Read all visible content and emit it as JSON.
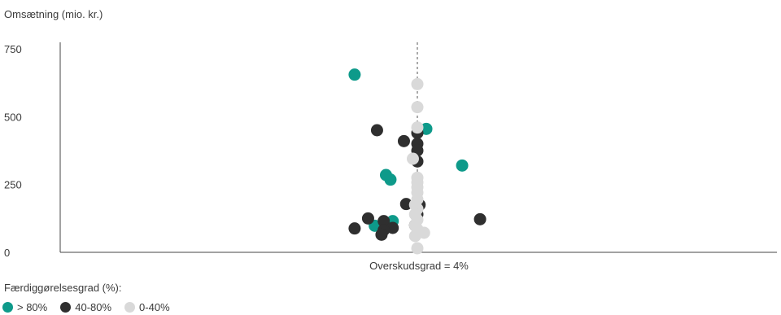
{
  "chart_data": {
    "type": "scatter",
    "ylabel": "Omsætning (mio. kr.)",
    "xlabel": "Overskudsgrad = 4%",
    "ylim": [
      0,
      750
    ],
    "yticks": [
      0,
      250,
      500,
      750
    ],
    "xlim": [
      -0.16,
      0.16
    ],
    "reference_x": 0.04,
    "legend_title": "Færdiggørelsesgrad (%):",
    "legend_placement": "bottom-left",
    "grid": false,
    "series": [
      {
        "name": "> 80%",
        "color": "#0e9a8a",
        "points": [
          {
            "x": 0.012,
            "y": 655
          },
          {
            "x": 0.044,
            "y": 455
          },
          {
            "x": 0.06,
            "y": 320
          },
          {
            "x": 0.026,
            "y": 285
          },
          {
            "x": 0.028,
            "y": 268
          },
          {
            "x": 0.029,
            "y": 115
          },
          {
            "x": 0.021,
            "y": 98
          }
        ]
      },
      {
        "name": "40-80%",
        "color": "#2f2f2f",
        "points": [
          {
            "x": 0.022,
            "y": 450
          },
          {
            "x": 0.034,
            "y": 410
          },
          {
            "x": 0.04,
            "y": 440
          },
          {
            "x": 0.04,
            "y": 400
          },
          {
            "x": 0.04,
            "y": 375
          },
          {
            "x": 0.04,
            "y": 335
          },
          {
            "x": 0.035,
            "y": 178
          },
          {
            "x": 0.041,
            "y": 175
          },
          {
            "x": 0.018,
            "y": 125
          },
          {
            "x": 0.068,
            "y": 122
          },
          {
            "x": 0.025,
            "y": 115
          },
          {
            "x": 0.012,
            "y": 88
          },
          {
            "x": 0.029,
            "y": 90
          },
          {
            "x": 0.025,
            "y": 82
          },
          {
            "x": 0.024,
            "y": 65
          },
          {
            "x": 0.04,
            "y": 140
          },
          {
            "x": 0.039,
            "y": 100
          }
        ]
      },
      {
        "name": "0-40%",
        "color": "#d9d9d9",
        "points": [
          {
            "x": 0.04,
            "y": 620
          },
          {
            "x": 0.04,
            "y": 535
          },
          {
            "x": 0.04,
            "y": 460
          },
          {
            "x": 0.038,
            "y": 345
          },
          {
            "x": 0.04,
            "y": 275
          },
          {
            "x": 0.04,
            "y": 258
          },
          {
            "x": 0.04,
            "y": 240
          },
          {
            "x": 0.04,
            "y": 220
          },
          {
            "x": 0.04,
            "y": 195
          },
          {
            "x": 0.039,
            "y": 175
          },
          {
            "x": 0.04,
            "y": 160
          },
          {
            "x": 0.039,
            "y": 140
          },
          {
            "x": 0.04,
            "y": 120
          },
          {
            "x": 0.039,
            "y": 100
          },
          {
            "x": 0.04,
            "y": 85
          },
          {
            "x": 0.043,
            "y": 72
          },
          {
            "x": 0.039,
            "y": 60
          },
          {
            "x": 0.04,
            "y": 15
          }
        ]
      }
    ]
  },
  "labels": {
    "y_axis_title": "Omsætning (mio. kr.)",
    "x_axis_caption": "Overskudsgrad = 4%",
    "legend_title": "Færdiggørelsesgrad (%):",
    "legend_items": [
      "> 80%",
      "40-80%",
      "0-40%"
    ]
  }
}
